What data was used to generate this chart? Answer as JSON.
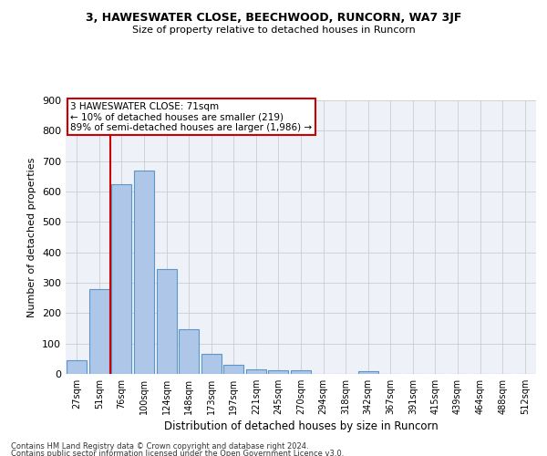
{
  "title1": "3, HAWESWATER CLOSE, BEECHWOOD, RUNCORN, WA7 3JF",
  "title2": "Size of property relative to detached houses in Runcorn",
  "xlabel": "Distribution of detached houses by size in Runcorn",
  "ylabel": "Number of detached properties",
  "bar_labels": [
    "27sqm",
    "51sqm",
    "76sqm",
    "100sqm",
    "124sqm",
    "148sqm",
    "173sqm",
    "197sqm",
    "221sqm",
    "245sqm",
    "270sqm",
    "294sqm",
    "318sqm",
    "342sqm",
    "367sqm",
    "391sqm",
    "415sqm",
    "439sqm",
    "464sqm",
    "488sqm",
    "512sqm"
  ],
  "bar_values": [
    45,
    280,
    625,
    670,
    345,
    147,
    65,
    30,
    16,
    12,
    12,
    0,
    0,
    10,
    0,
    0,
    0,
    0,
    0,
    0,
    0
  ],
  "bar_color": "#aec6e8",
  "bar_edge_color": "#5a96c8",
  "annotation_line1": "3 HAWESWATER CLOSE: 71sqm",
  "annotation_line2": "← 10% of detached houses are smaller (219)",
  "annotation_line3": "89% of semi-detached houses are larger (1,986) →",
  "vline_x": 1.5,
  "vline_color": "#cc0000",
  "annotation_box_color": "#cc0000",
  "ylim": [
    0,
    900
  ],
  "yticks": [
    0,
    100,
    200,
    300,
    400,
    500,
    600,
    700,
    800,
    900
  ],
  "background_color": "#eef2f8",
  "footer1": "Contains HM Land Registry data © Crown copyright and database right 2024.",
  "footer2": "Contains public sector information licensed under the Open Government Licence v3.0."
}
